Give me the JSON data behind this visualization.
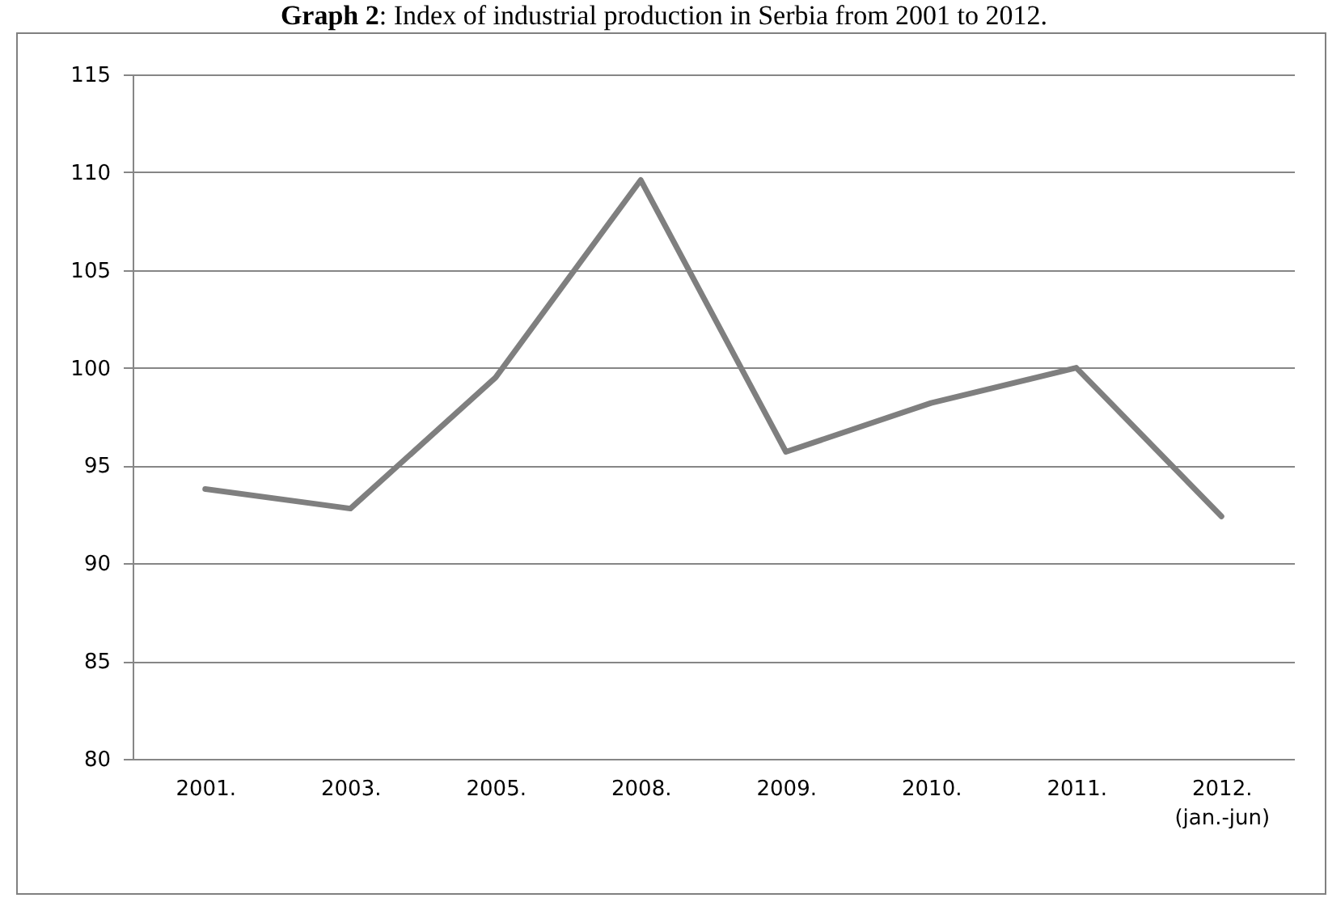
{
  "chart_data": {
    "type": "line",
    "title": "Graph 2: Index of industrial production in Serbia from 2001 to 2012.",
    "categories": [
      "2001.",
      "2003.",
      "2005.",
      "2008.",
      "2009.",
      "2010.",
      "2011.",
      "2012. (jan.-jun)"
    ],
    "series": [
      {
        "color": "#7f7f7f",
        "values": [
          93.8,
          92.8,
          99.5,
          109.6,
          95.7,
          98.2,
          100.0,
          92.4
        ]
      }
    ],
    "ylim": [
      80,
      115
    ],
    "yticks": [
      80,
      85,
      90,
      95,
      100,
      105,
      110,
      115
    ],
    "grid": "y",
    "marker": "none",
    "line_style": "solid"
  }
}
